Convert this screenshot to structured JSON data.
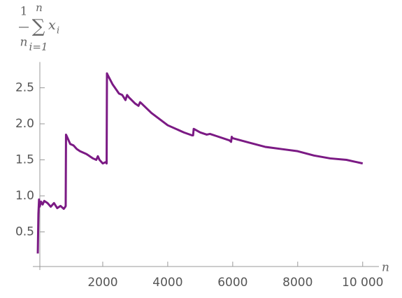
{
  "chart_data": {
    "type": "line",
    "ylabel": {
      "numerator": "1",
      "denominator": "n",
      "operator": "∑",
      "sum_top": "n",
      "sum_bottom": "i=1",
      "term": "x",
      "term_sub": "i"
    },
    "xlabel": "n",
    "color": "#7b1a84",
    "x": [
      1,
      20,
      40,
      60,
      100,
      150,
      200,
      300,
      400,
      500,
      600,
      700,
      800,
      850,
      860,
      870,
      900,
      1000,
      1100,
      1200,
      1300,
      1500,
      1700,
      1800,
      1850,
      1900,
      2000,
      2100,
      2120,
      2130,
      2150,
      2300,
      2500,
      2600,
      2700,
      2750,
      2800,
      3000,
      3100,
      3150,
      3200,
      3500,
      4000,
      4500,
      4750,
      4780,
      4800,
      5000,
      5200,
      5300,
      5500,
      5900,
      5950,
      5970,
      6000,
      6500,
      7000,
      7500,
      8000,
      8500,
      9000,
      9500,
      10000
    ],
    "values": [
      0.2,
      0.75,
      0.95,
      0.85,
      0.92,
      0.88,
      0.93,
      0.9,
      0.85,
      0.9,
      0.83,
      0.86,
      0.82,
      0.85,
      0.86,
      1.85,
      1.82,
      1.72,
      1.7,
      1.65,
      1.62,
      1.58,
      1.52,
      1.5,
      1.55,
      1.5,
      1.45,
      1.47,
      1.45,
      2.7,
      2.68,
      2.55,
      2.42,
      2.4,
      2.33,
      2.4,
      2.37,
      2.28,
      2.25,
      2.3,
      2.28,
      2.15,
      1.98,
      1.88,
      1.84,
      1.84,
      1.93,
      1.88,
      1.85,
      1.86,
      1.83,
      1.77,
      1.75,
      1.82,
      1.8,
      1.74,
      1.68,
      1.65,
      1.62,
      1.56,
      1.52,
      1.5,
      1.45
    ],
    "xlim": [
      0,
      10500
    ],
    "ylim": [
      0,
      2.8
    ],
    "xticks": [
      2000,
      4000,
      6000,
      8000,
      {
        "value": 10000,
        "label": "10 000"
      }
    ],
    "yticks": [
      0.5,
      {
        "value": 1,
        "label": "1.0"
      },
      1.5,
      {
        "value": 2,
        "label": "2.0"
      },
      2.5
    ],
    "grid": false
  }
}
